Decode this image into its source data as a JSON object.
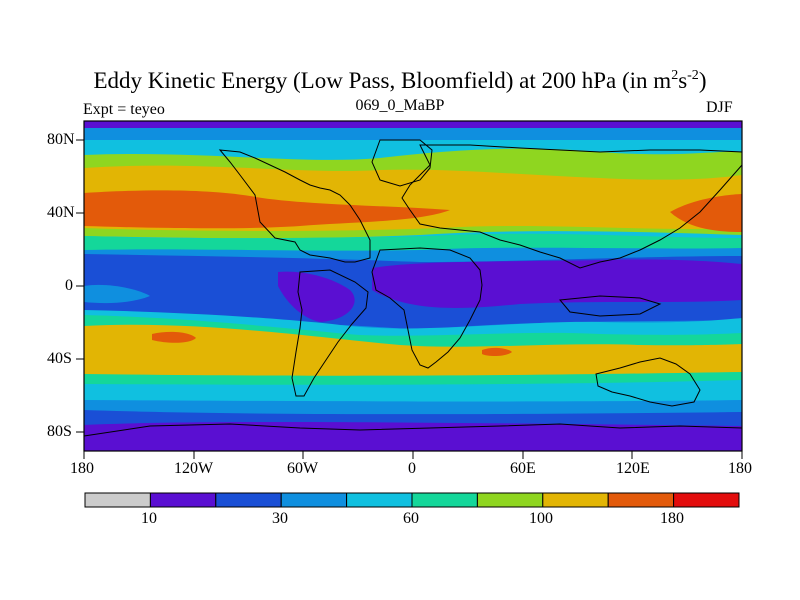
{
  "title": {
    "prefix": "Eddy Kinetic Energy (Low Pass, Bloomfield) at 200 hPa (in m",
    "sup1": "2",
    "mid": "s",
    "sup2": "-2",
    "suffix": ")"
  },
  "left_string": "Expt = teyeo",
  "center_string": "069_0_MaBP",
  "right_string": "DJF",
  "y_ticks": [
    "80N",
    "40N",
    "0",
    "40S",
    "80S"
  ],
  "x_ticks": [
    "180",
    "120W",
    "60W",
    "0",
    "60E",
    "120E",
    "180"
  ],
  "colorbar": {
    "colors": [
      "#cccccc",
      "#5a0fd2",
      "#1a4fd6",
      "#0f8fdf",
      "#10c0e0",
      "#14d79a",
      "#8fd620",
      "#e2b504",
      "#e35a0a",
      "#e20c0c"
    ],
    "labels": [
      "10",
      "30",
      "60",
      "100",
      "180"
    ]
  },
  "palette": {
    "c1": "#5a0fd2",
    "c2": "#1a4fd6",
    "c3": "#0f8fdf",
    "c4": "#10c0e0",
    "c5": "#14d79a",
    "c6": "#8fd620",
    "c7": "#e2b504",
    "c8": "#e35a0a"
  }
}
